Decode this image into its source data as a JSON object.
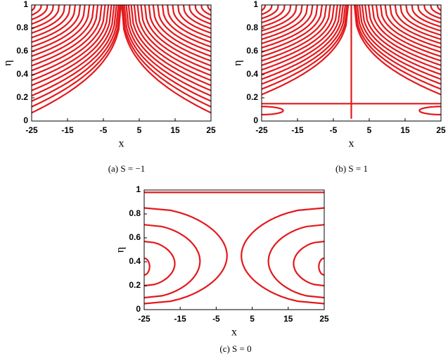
{
  "charts": [
    {
      "type": "contour",
      "caption": "(a) S = −1",
      "xlabel": "x",
      "ylabel": "η",
      "xlim": [
        -25,
        25
      ],
      "ylim": [
        0,
        1
      ],
      "xticks": [
        -25,
        -15,
        -5,
        5,
        15,
        25
      ],
      "yticks": [
        0,
        0.2,
        0.4,
        0.6,
        0.8,
        1
      ],
      "color": "#e3191c"
    },
    {
      "type": "contour",
      "caption": "(b) S = 1",
      "xlabel": "x",
      "ylabel": "η",
      "xlim": [
        -25,
        25
      ],
      "ylim": [
        0,
        1
      ],
      "xticks": [
        -25,
        -15,
        -5,
        5,
        15,
        25
      ],
      "yticks": [
        0,
        0.2,
        0.4,
        0.6,
        0.8,
        1
      ],
      "color": "#e3191c"
    },
    {
      "type": "contour",
      "caption": "(c) S = 0",
      "xlabel": "x",
      "ylabel": "η",
      "xlim": [
        -25,
        25
      ],
      "ylim": [
        0,
        1
      ],
      "xticks": [
        -25,
        -15,
        -5,
        5,
        15,
        25
      ],
      "yticks": [
        0,
        0.2,
        0.4,
        0.6,
        0.8,
        1
      ],
      "color": "#e3191c"
    }
  ]
}
